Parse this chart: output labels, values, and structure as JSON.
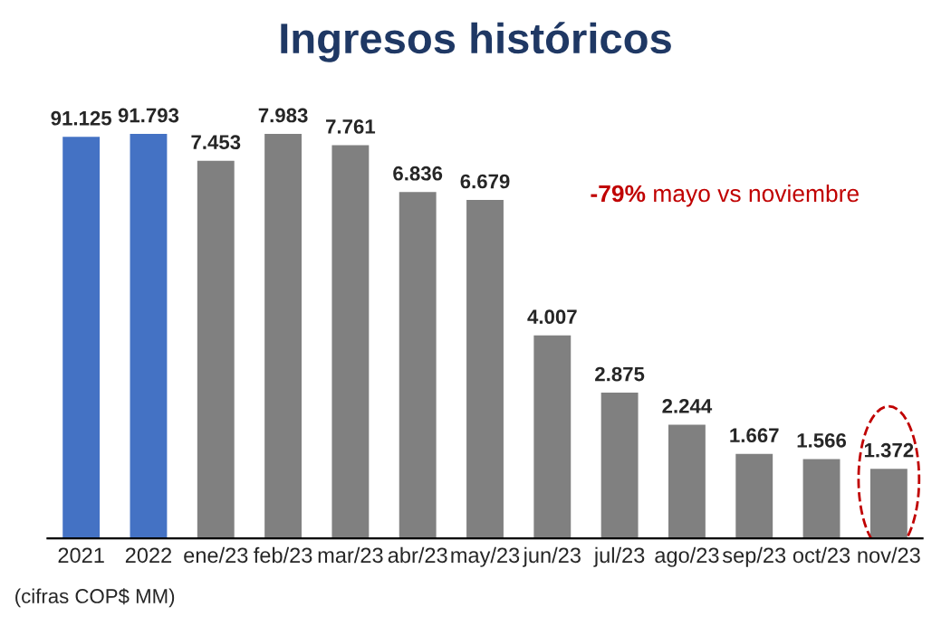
{
  "chart_data": {
    "type": "bar",
    "title": "Ingresos históricos",
    "categories": [
      "2021",
      "2022",
      "ene/23",
      "feb/23",
      "mar/23",
      "abr/23",
      "may/23",
      "jun/23",
      "jul/23",
      "ago/23",
      "sep/23",
      "oct/23",
      "nov/23"
    ],
    "series": [
      {
        "color": "#4472c4",
        "axis": "y2",
        "values": [
          91.125,
          91.793,
          null,
          null,
          null,
          null,
          null,
          null,
          null,
          null,
          null,
          null,
          null
        ]
      },
      {
        "color": "#808080",
        "values": [
          null,
          null,
          7.453,
          7.983,
          7.761,
          6.836,
          6.679,
          4.007,
          2.875,
          2.244,
          1.667,
          1.566,
          1.372
        ]
      }
    ],
    "data_labels": true,
    "grid": false,
    "legend": false,
    "tick_labels": "x",
    "annotations": [
      "-79% mayo vs noviembre",
      "(cifras COP$ MM)"
    ]
  }
}
